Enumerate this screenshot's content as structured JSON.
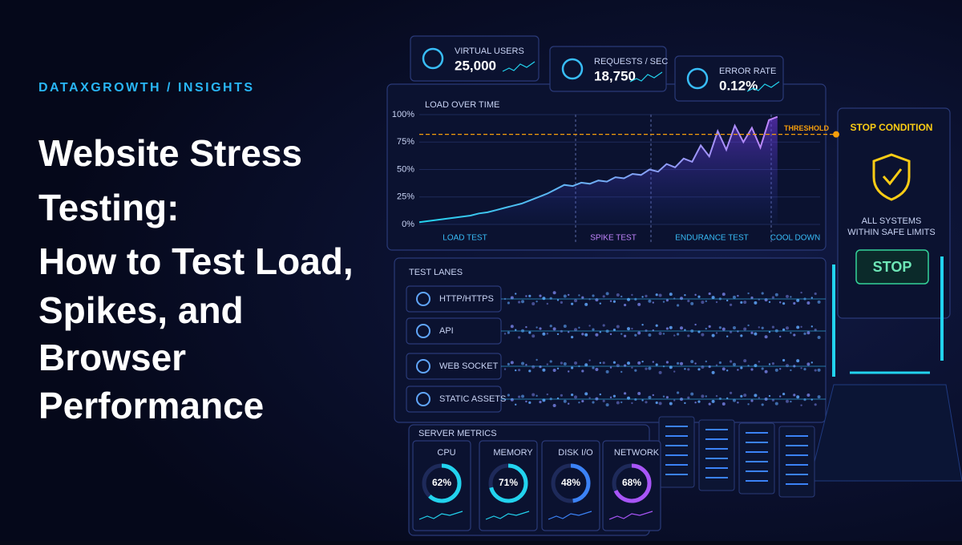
{
  "header": {
    "eyebrow": "DATAXGROWTH / INSIGHTS",
    "title_lines": [
      "Website Stress",
      "Testing:",
      "How to Test Load,",
      "Spikes, and",
      "Browser",
      "Performance"
    ]
  },
  "stats": [
    {
      "label": "VIRTUAL USERS",
      "value": "25,000"
    },
    {
      "label": "REQUESTS / SEC",
      "value": "18,750"
    },
    {
      "label": "ERROR RATE",
      "value": "0.12%"
    }
  ],
  "chart_data": {
    "type": "line",
    "title": "LOAD OVER TIME",
    "color": "#8b5cf6",
    "values": [
      2,
      3,
      4,
      5,
      6,
      7,
      8,
      10,
      11,
      13,
      15,
      17,
      19,
      22,
      25,
      28,
      32,
      36,
      35,
      38,
      37,
      40,
      39,
      43,
      42,
      46,
      45,
      50,
      48,
      55,
      52,
      60,
      57,
      72,
      62,
      85,
      68,
      90,
      75,
      88,
      70,
      95,
      98,
      null,
      null,
      null,
      null,
      null
    ],
    "ylim": [
      0,
      100
    ],
    "yticks": [
      {
        "value": 0,
        "label": "0%"
      },
      {
        "value": 25,
        "label": "25%"
      },
      {
        "value": 50,
        "label": "50%"
      },
      {
        "value": 75,
        "label": "75%"
      },
      {
        "value": 100,
        "label": "100%"
      }
    ],
    "threshold": {
      "value": 82,
      "label": "THRESHOLD",
      "color": "#f59e0b"
    },
    "phases": [
      "LOAD TEST",
      "SPIKE TEST",
      "ENDURANCE TEST",
      "COOL DOWN"
    ]
  },
  "test_lanes": {
    "title": "TEST LANES",
    "lanes": [
      "HTTP/HTTPS",
      "API",
      "WEB SOCKET",
      "STATIC ASSETS"
    ]
  },
  "stop_condition": {
    "title": "STOP CONDITION",
    "status_lines": [
      "ALL SYSTEMS",
      "WITHIN SAFE LIMITS"
    ],
    "button": "STOP"
  },
  "server_metrics": {
    "title": "SERVER METRICS",
    "metrics": [
      {
        "name": "CPU",
        "value": 62,
        "label": "62%",
        "color": "#22d3ee"
      },
      {
        "name": "MEMORY",
        "value": 71,
        "label": "71%",
        "color": "#22d3ee"
      },
      {
        "name": "DISK I/O",
        "value": 48,
        "label": "48%",
        "color": "#3b82f6"
      },
      {
        "name": "NETWORK",
        "value": 68,
        "label": "68%",
        "color": "#a855f7"
      }
    ]
  }
}
